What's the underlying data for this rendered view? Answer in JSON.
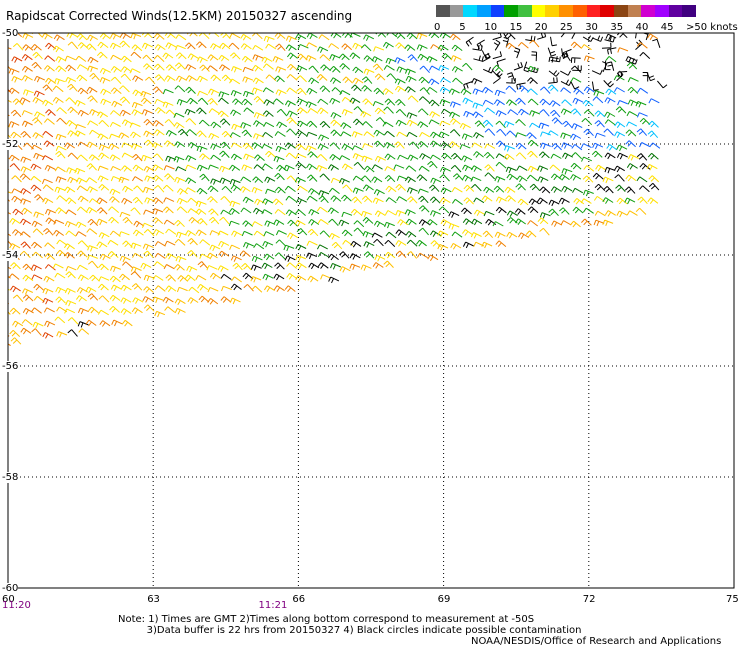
{
  "title": "Rapidscat Corrected Winds(12.5KM) 20150327 ascending",
  "legend": {
    "swatches": [
      {
        "color": "#555555"
      },
      {
        "color": "#999999"
      },
      {
        "color": "#00d8ff"
      },
      {
        "color": "#00a0ff"
      },
      {
        "color": "#1040ff"
      },
      {
        "color": "#00a000"
      },
      {
        "color": "#40c040"
      },
      {
        "color": "#ffff00"
      },
      {
        "color": "#ffd000"
      },
      {
        "color": "#ff9000"
      },
      {
        "color": "#ff6000"
      },
      {
        "color": "#ff2020"
      },
      {
        "color": "#e00000"
      },
      {
        "color": "#8b4513"
      },
      {
        "color": "#c08050"
      },
      {
        "color": "#d000d0"
      },
      {
        "color": "#a000ff"
      },
      {
        "color": "#6000a0"
      },
      {
        "color": "#400080"
      }
    ],
    "labels": [
      {
        "text": "0",
        "pos": 0
      },
      {
        "text": "5",
        "pos": 5
      },
      {
        "text": "10",
        "pos": 10
      },
      {
        "text": "15",
        "pos": 15
      },
      {
        "text": "20",
        "pos": 20
      },
      {
        "text": "25",
        "pos": 25
      },
      {
        "text": "30",
        "pos": 30
      },
      {
        "text": "35",
        "pos": 35
      },
      {
        "text": "40",
        "pos": 40
      },
      {
        "text": "45",
        "pos": 45
      },
      {
        "text": ">50 knots",
        "pos": 50
      }
    ]
  },
  "axes": {
    "lat_labels": [
      "-50",
      "-52",
      "-54",
      "-56",
      "-58",
      "-60"
    ],
    "lat_values": [
      -50,
      -52,
      -54,
      -56,
      -58,
      -60
    ],
    "lon_labels": [
      "60",
      "63",
      "66",
      "69",
      "72",
      "75"
    ],
    "lon_values": [
      60,
      63,
      66,
      69,
      72,
      75
    ],
    "time_labels": [
      {
        "text": "11:20",
        "lon": 60
      },
      {
        "text": "11:21",
        "lon": 65.3
      }
    ]
  },
  "swath": {
    "description_colors": {
      "light": "#ffe000",
      "mid": "#ffc000",
      "orange": "#f08000",
      "red": "#e04000",
      "green": "#10a010",
      "dkgreen": "#007000",
      "blue": "#1060ff",
      "cyan": "#00c0ff",
      "black": "#000000"
    }
  },
  "notes": {
    "line1": "Note: 1) Times are GMT 2)Times along bottom correspond to measurement at -50S",
    "line2": "         3)Data buffer is 22 hrs from 20150327 4) Black circles indicate possible contamination"
  },
  "credit": "NOAA/NESDIS/Office of Research and Applications"
}
